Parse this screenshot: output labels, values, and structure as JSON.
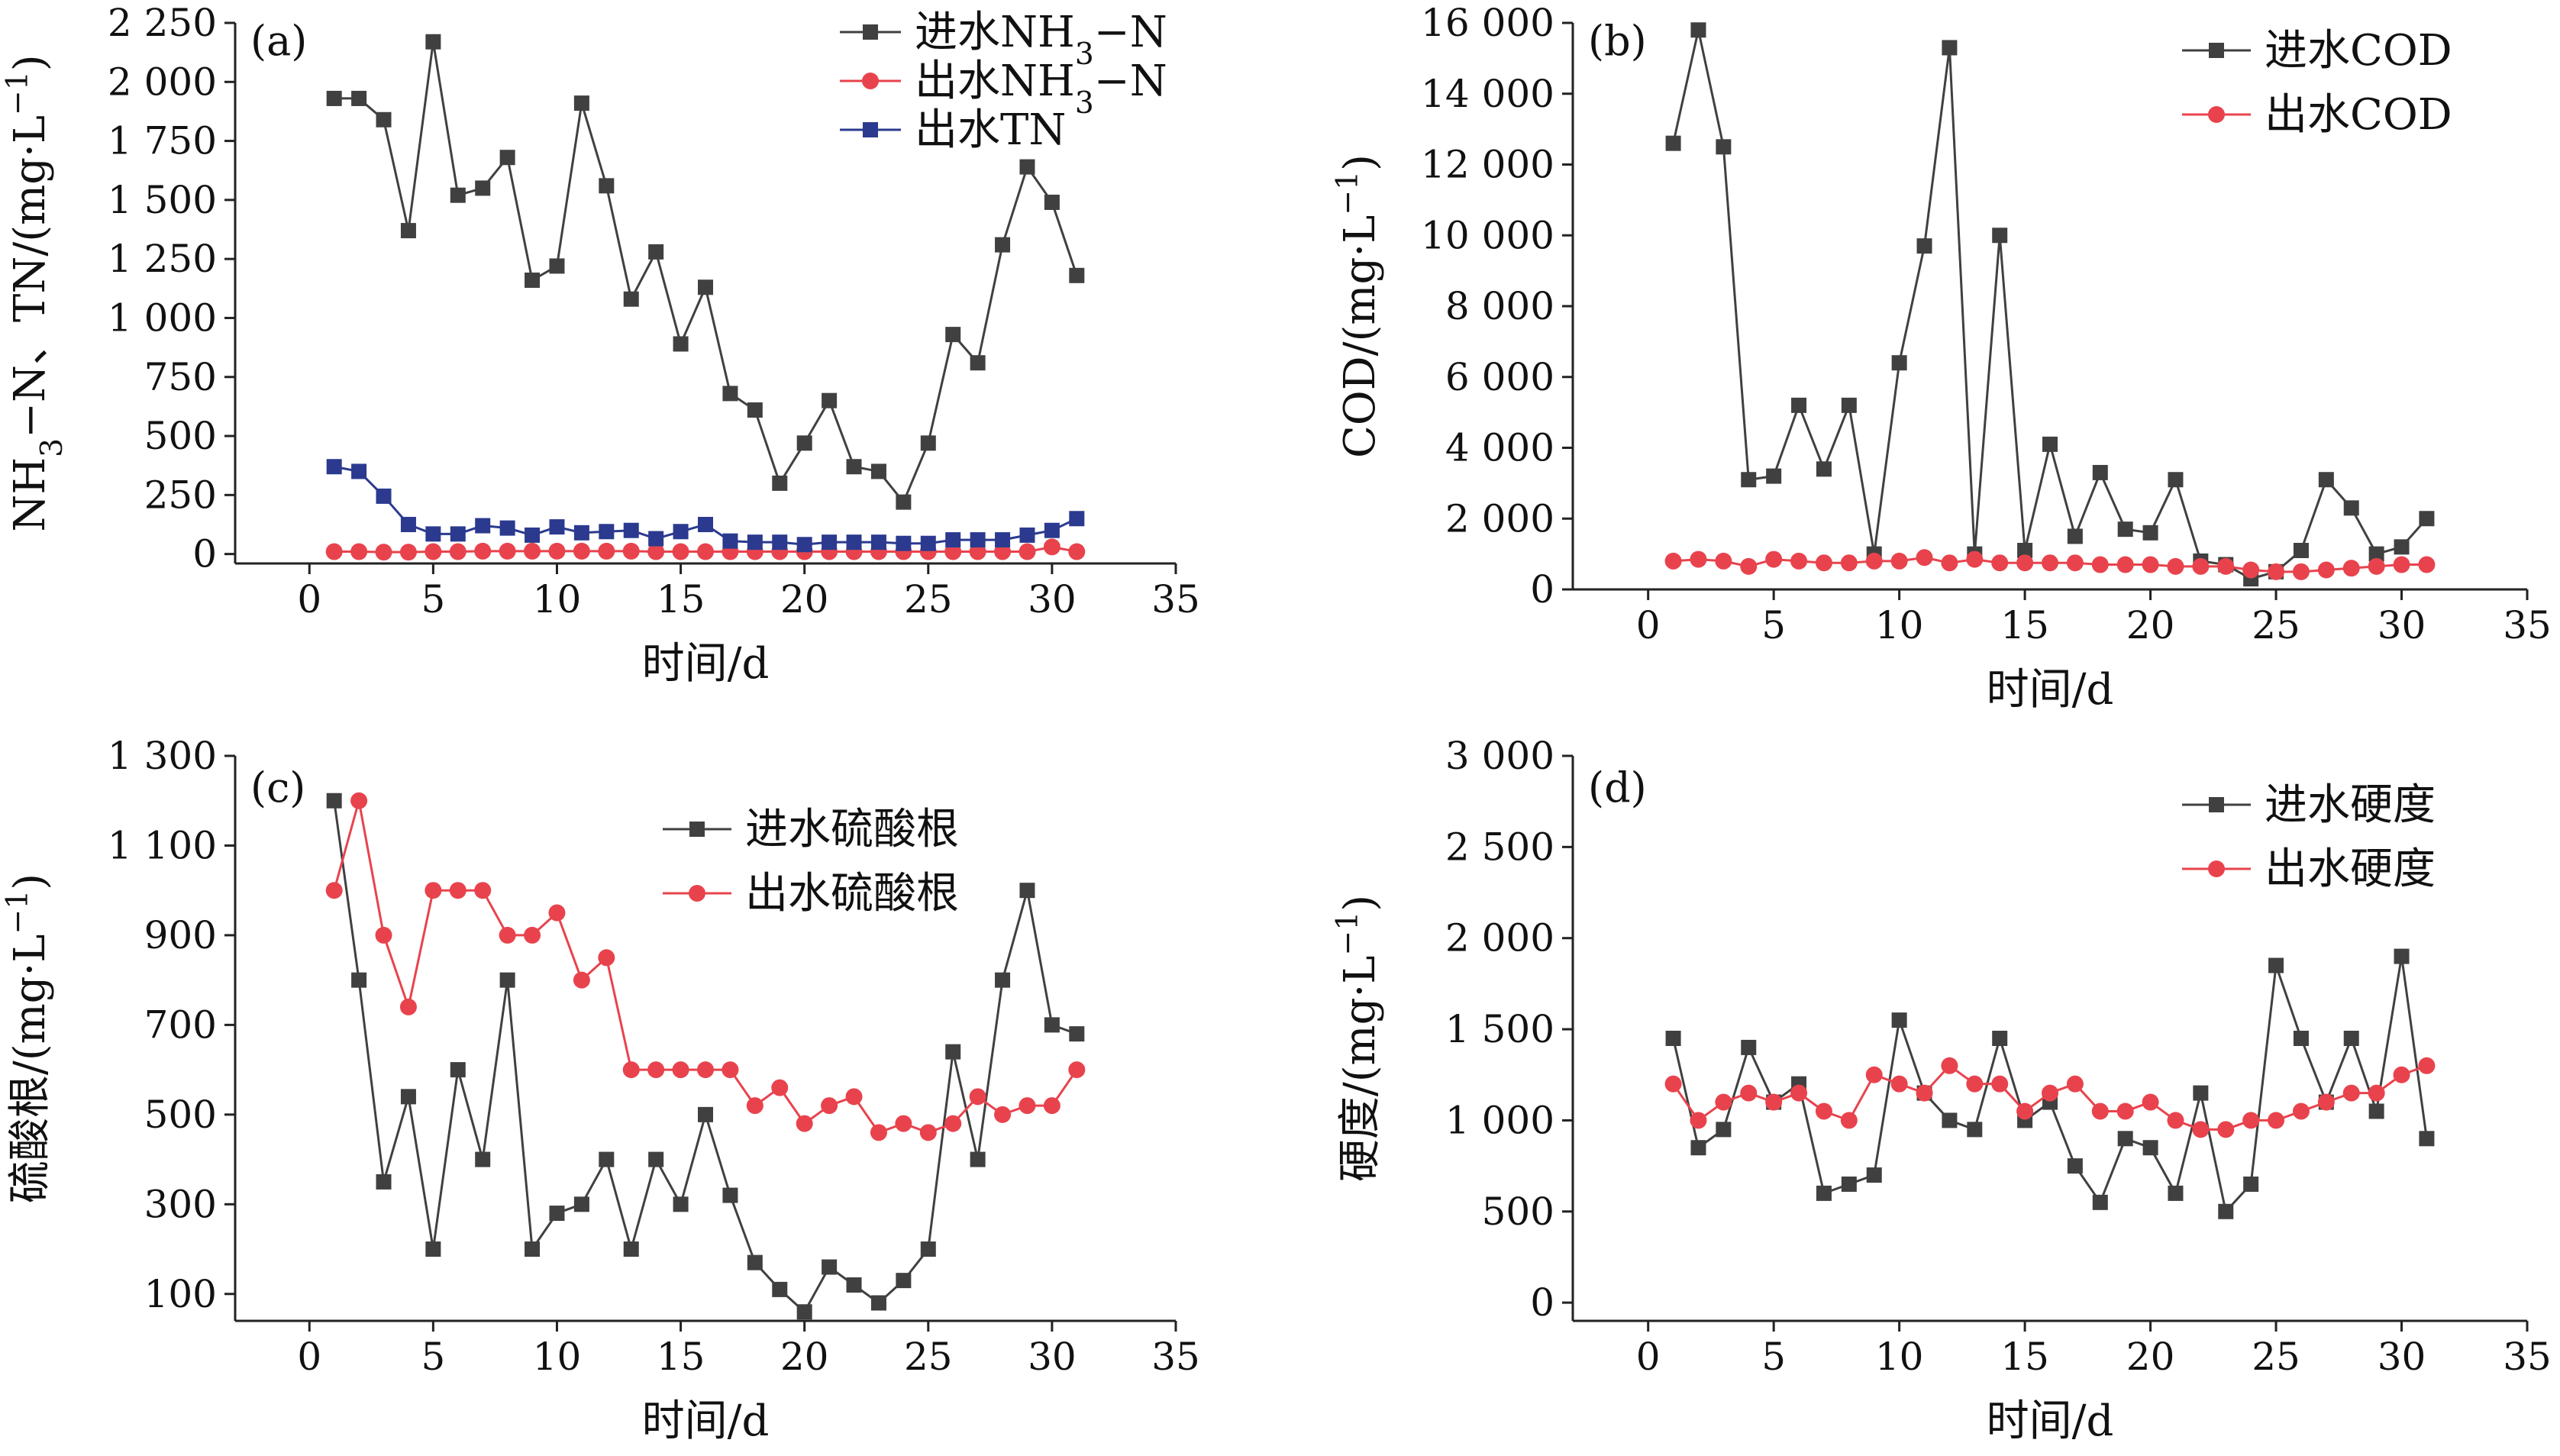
{
  "chart_data": [
    {
      "panel": "(a)",
      "type": "line",
      "xlabel": "时间/d",
      "ylabel": "NH3-N、TN/(mg·L-1)",
      "xlim": [
        -3,
        35
      ],
      "ylim": [
        -40,
        2250
      ],
      "xticks": [
        0,
        5,
        10,
        15,
        20,
        25,
        30,
        35
      ],
      "xtick_labels": [
        "0",
        "5",
        "10",
        "15",
        "20",
        "25",
        "30",
        "35"
      ],
      "yticks": [
        0,
        250,
        500,
        750,
        1000,
        1250,
        1500,
        1750,
        2000,
        2250
      ],
      "ytick_labels": [
        "0",
        "250",
        "500",
        "750",
        "1 000",
        "1 250",
        "1 500",
        "1 750",
        "2 000",
        "2 250"
      ],
      "legend_position": "top-right",
      "x": [
        1,
        2,
        3,
        4,
        5,
        6,
        7,
        8,
        9,
        10,
        11,
        12,
        13,
        14,
        15,
        16,
        17,
        18,
        19,
        20,
        21,
        22,
        23,
        24,
        25,
        26,
        27,
        28,
        29,
        30,
        31
      ],
      "series": [
        {
          "name": "进水NH3-N",
          "color": "#404040",
          "marker": "square",
          "values": [
            1930,
            1930,
            1840,
            1370,
            2170,
            1520,
            1550,
            1680,
            1160,
            1220,
            1910,
            1560,
            1080,
            1280,
            890,
            1130,
            680,
            610,
            300,
            470,
            650,
            370,
            350,
            220,
            470,
            930,
            810,
            1310,
            1640,
            1490,
            1180
          ]
        },
        {
          "name": "出水NH3-N",
          "color": "#e8434d",
          "marker": "circle",
          "values": [
            10,
            10,
            8,
            8,
            10,
            10,
            12,
            12,
            12,
            12,
            12,
            12,
            12,
            10,
            10,
            10,
            10,
            10,
            10,
            10,
            10,
            10,
            10,
            10,
            10,
            10,
            10,
            10,
            10,
            30,
            10
          ]
        },
        {
          "name": "出水TN",
          "color": "#2b3a8f",
          "marker": "square",
          "values": [
            370,
            350,
            245,
            125,
            85,
            85,
            120,
            110,
            80,
            115,
            90,
            95,
            100,
            65,
            95,
            125,
            55,
            50,
            50,
            40,
            50,
            50,
            50,
            45,
            45,
            60,
            60,
            60,
            80,
            100,
            150
          ]
        }
      ]
    },
    {
      "panel": "(b)",
      "type": "line",
      "xlabel": "时间/d",
      "ylabel": "COD/(mg·L-1)",
      "xlim": [
        -3,
        35
      ],
      "ylim": [
        0,
        16000
      ],
      "xticks": [
        0,
        5,
        10,
        15,
        20,
        25,
        30,
        35
      ],
      "xtick_labels": [
        "0",
        "5",
        "10",
        "15",
        "20",
        "25",
        "30",
        "35"
      ],
      "yticks": [
        0,
        2000,
        4000,
        6000,
        8000,
        10000,
        12000,
        14000,
        16000
      ],
      "ytick_labels": [
        "0",
        "2 000",
        "4 000",
        "6 000",
        "8 000",
        "10 000",
        "12 000",
        "14 000",
        "16 000"
      ],
      "legend_position": "top-right",
      "x": [
        1,
        2,
        3,
        4,
        5,
        6,
        7,
        8,
        9,
        10,
        11,
        12,
        13,
        14,
        15,
        16,
        17,
        18,
        19,
        20,
        21,
        22,
        23,
        24,
        25,
        26,
        27,
        28,
        29,
        30,
        31
      ],
      "series": [
        {
          "name": "进水COD",
          "color": "#404040",
          "marker": "square",
          "values": [
            12600,
            15800,
            12500,
            3100,
            3200,
            5200,
            3400,
            5200,
            1000,
            6400,
            9700,
            15300,
            1000,
            10000,
            1100,
            4100,
            1500,
            3300,
            1700,
            1600,
            3100,
            800,
            700,
            300,
            500,
            1100,
            3100,
            2300,
            1000,
            1200,
            2000
          ]
        },
        {
          "name": "出水COD",
          "color": "#e8434d",
          "marker": "circle",
          "values": [
            800,
            850,
            800,
            650,
            850,
            800,
            750,
            750,
            800,
            800,
            900,
            750,
            850,
            750,
            750,
            750,
            750,
            700,
            700,
            700,
            650,
            650,
            650,
            550,
            500,
            500,
            550,
            600,
            650,
            700,
            700
          ]
        }
      ]
    },
    {
      "panel": "(c)",
      "type": "line",
      "xlabel": "时间/d",
      "ylabel": "硫酸根/(mg·L-1)",
      "xlim": [
        -3,
        35
      ],
      "ylim": [
        40,
        1300
      ],
      "xticks": [
        0,
        5,
        10,
        15,
        20,
        25,
        30,
        35
      ],
      "xtick_labels": [
        "0",
        "5",
        "10",
        "15",
        "20",
        "25",
        "30",
        "35"
      ],
      "yticks": [
        100,
        300,
        500,
        700,
        900,
        1100,
        1300
      ],
      "ytick_labels": [
        "100",
        "300",
        "500",
        "700",
        "900",
        "1 100",
        "1 300"
      ],
      "legend_position": "top-right",
      "x": [
        1,
        2,
        3,
        4,
        5,
        6,
        7,
        8,
        9,
        10,
        11,
        12,
        13,
        14,
        15,
        16,
        17,
        18,
        19,
        20,
        21,
        22,
        23,
        24,
        25,
        26,
        27,
        28,
        29,
        30,
        31
      ],
      "series": [
        {
          "name": "进水硫酸根",
          "color": "#404040",
          "marker": "square",
          "values": [
            1200,
            800,
            350,
            540,
            200,
            600,
            400,
            800,
            200,
            280,
            300,
            400,
            200,
            400,
            300,
            500,
            320,
            170,
            110,
            60,
            160,
            120,
            80,
            130,
            200,
            640,
            400,
            800,
            1000,
            700,
            680
          ]
        },
        {
          "name": "出水硫酸根",
          "color": "#e8434d",
          "marker": "circle",
          "values": [
            1000,
            1200,
            900,
            740,
            1000,
            1000,
            1000,
            900,
            900,
            950,
            800,
            850,
            600,
            600,
            600,
            600,
            600,
            520,
            560,
            480,
            520,
            540,
            460,
            480,
            460,
            480,
            540,
            500,
            520,
            520,
            600
          ]
        }
      ]
    },
    {
      "panel": "(d)",
      "type": "line",
      "xlabel": "时间/d",
      "ylabel": "硬度/(mg·L-1)",
      "xlim": [
        -3,
        35
      ],
      "ylim": [
        -100,
        3000
      ],
      "xticks": [
        0,
        5,
        10,
        15,
        20,
        25,
        30,
        35
      ],
      "xtick_labels": [
        "0",
        "5",
        "10",
        "15",
        "20",
        "25",
        "30",
        "35"
      ],
      "yticks": [
        0,
        500,
        1000,
        1500,
        2000,
        2500,
        3000
      ],
      "ytick_labels": [
        "0",
        "500",
        "1 000",
        "1 500",
        "2 000",
        "2 500",
        "3 000"
      ],
      "legend_position": "top-right",
      "x": [
        1,
        2,
        3,
        4,
        5,
        6,
        7,
        8,
        9,
        10,
        11,
        12,
        13,
        14,
        15,
        16,
        17,
        18,
        19,
        20,
        21,
        22,
        23,
        24,
        25,
        26,
        27,
        28,
        29,
        30,
        31
      ],
      "series": [
        {
          "name": "进水硬度",
          "color": "#404040",
          "marker": "square",
          "values": [
            1450,
            850,
            950,
            1400,
            1100,
            1200,
            600,
            650,
            700,
            1550,
            1150,
            1000,
            950,
            1450,
            1000,
            1100,
            750,
            550,
            900,
            850,
            600,
            1150,
            500,
            650,
            1850,
            1450,
            1100,
            1450,
            1050,
            1900,
            900
          ]
        },
        {
          "name": "出水硬度",
          "color": "#e8434d",
          "marker": "circle",
          "values": [
            1200,
            1000,
            1100,
            1150,
            1100,
            1150,
            1050,
            1000,
            1250,
            1200,
            1150,
            1300,
            1200,
            1200,
            1050,
            1150,
            1200,
            1050,
            1050,
            1100,
            1000,
            950,
            950,
            1000,
            1000,
            1050,
            1100,
            1150,
            1150,
            1250,
            1300
          ]
        }
      ]
    }
  ]
}
